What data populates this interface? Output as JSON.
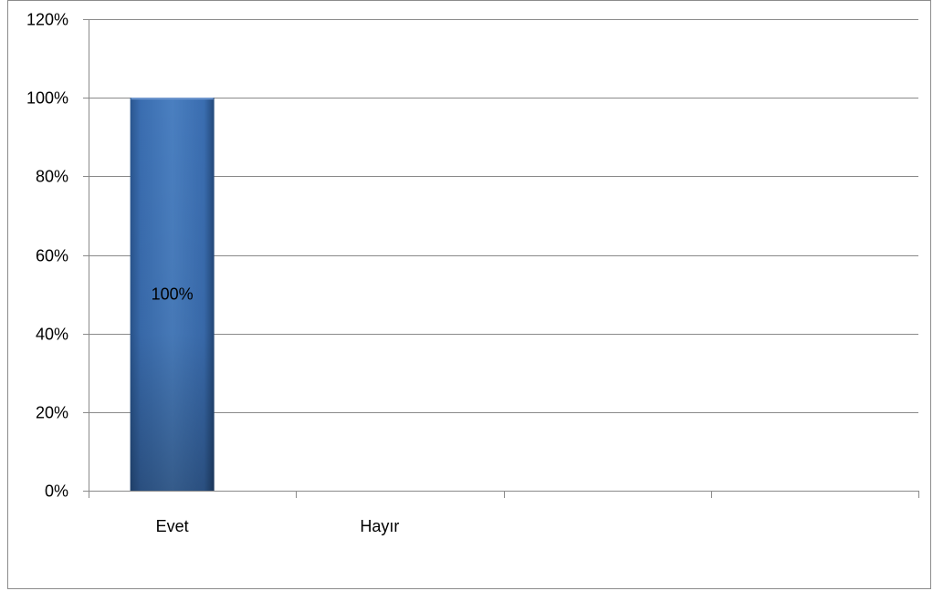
{
  "chart_data": {
    "type": "bar",
    "categories": [
      "Evet",
      "Hayır",
      "",
      ""
    ],
    "values": [
      100,
      null,
      null,
      null
    ],
    "data_labels": [
      "100%",
      "",
      "",
      ""
    ],
    "title": "",
    "xlabel": "",
    "ylabel": "",
    "ylim": [
      0,
      120
    ],
    "y_ticks": [
      0,
      20,
      40,
      60,
      80,
      100,
      120
    ],
    "y_tick_labels": [
      "0%",
      "20%",
      "40%",
      "60%",
      "80%",
      "100%",
      "120%"
    ],
    "grid": true,
    "legend": "none",
    "bar_color": "#3a6db0"
  }
}
